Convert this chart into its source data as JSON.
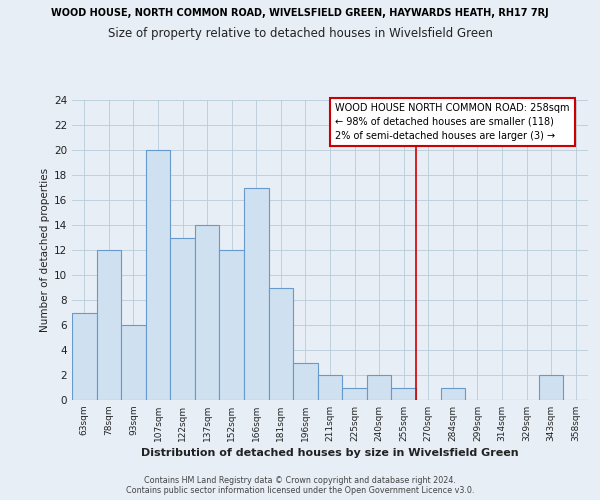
{
  "super_title": "WOOD HOUSE, NORTH COMMON ROAD, WIVELSFIELD GREEN, HAYWARDS HEATH, RH17 7RJ",
  "title": "Size of property relative to detached houses in Wivelsfield Green",
  "xlabel": "Distribution of detached houses by size in Wivelsfield Green",
  "ylabel": "Number of detached properties",
  "bin_labels": [
    "63sqm",
    "78sqm",
    "93sqm",
    "107sqm",
    "122sqm",
    "137sqm",
    "152sqm",
    "166sqm",
    "181sqm",
    "196sqm",
    "211sqm",
    "225sqm",
    "240sqm",
    "255sqm",
    "270sqm",
    "284sqm",
    "299sqm",
    "314sqm",
    "329sqm",
    "343sqm",
    "358sqm"
  ],
  "bar_heights": [
    7,
    12,
    6,
    20,
    13,
    14,
    12,
    17,
    9,
    3,
    2,
    1,
    2,
    1,
    0,
    1,
    0,
    0,
    0,
    2,
    0
  ],
  "bar_color": "#cfe0f0",
  "bar_edge_color": "#6699cc",
  "ylim": [
    0,
    24
  ],
  "yticks": [
    0,
    2,
    4,
    6,
    8,
    10,
    12,
    14,
    16,
    18,
    20,
    22,
    24
  ],
  "vline_x_idx": 13.5,
  "vline_color": "#cc0000",
  "annotation_title": "WOOD HOUSE NORTH COMMON ROAD: 258sqm",
  "annotation_line2": "← 98% of detached houses are smaller (118)",
  "annotation_line3": "2% of semi-detached houses are larger (3) →",
  "footer_line1": "Contains HM Land Registry data © Crown copyright and database right 2024.",
  "footer_line2": "Contains public sector information licensed under the Open Government Licence v3.0.",
  "background_color": "#e8eef5",
  "plot_bg_color": "#e8eef5",
  "grid_color": "#b8ccd8"
}
